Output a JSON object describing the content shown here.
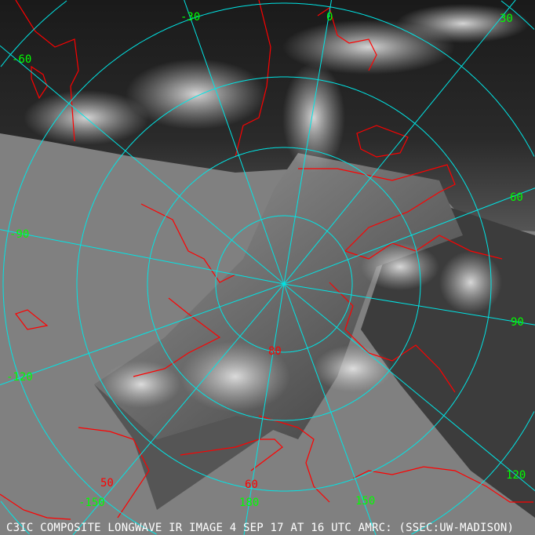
{
  "caption": "C3IC COMPOSITE LONGWAVE IR IMAGE 4 SEP 17 AT 16 UTC AMRC: (SSEC:UW-MADISON)",
  "colors": {
    "background": "#808080",
    "grid": "#00e5e5",
    "coastline": "#ff0000",
    "longitude_labels": "#00ff00",
    "latitude_labels": "#ff0000",
    "caption": "#ffffff"
  },
  "longitude_labels": [
    "-60",
    "-30",
    "0",
    "30",
    "60",
    "90",
    "120",
    "150",
    "180",
    "-150",
    "-120",
    "-90"
  ],
  "latitude_labels": [
    "80",
    "60",
    "50"
  ]
}
